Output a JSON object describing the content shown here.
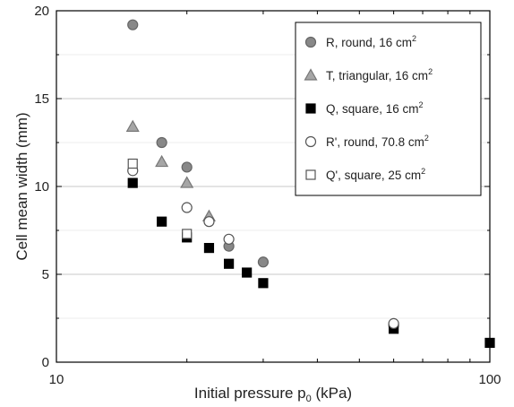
{
  "chart_data": {
    "type": "scatter",
    "title": "",
    "xlabel": "Initial pressure p",
    "xlabel_sub": "0",
    "xlabel_unit": " (kPa)",
    "ylabel": "Cell mean width (mm)",
    "x_scale": "log",
    "xlim": [
      10,
      100
    ],
    "ylim": [
      0,
      20
    ],
    "x_ticks": [
      10,
      100
    ],
    "x_tick_labels": [
      "10",
      "100"
    ],
    "y_ticks": [
      0,
      5,
      10,
      15,
      20
    ],
    "y_tick_labels": [
      "0",
      "5",
      "10",
      "15",
      "20"
    ],
    "grid": "horizontal",
    "legend_position": "top-right",
    "series": [
      {
        "key": "R",
        "name": "R, round, 16 cm",
        "name_sup": "2",
        "marker": "circle",
        "fill": "#888888",
        "stroke": "#666666",
        "points": [
          [
            15,
            19.2
          ],
          [
            17.5,
            12.5
          ],
          [
            20,
            11.1
          ],
          [
            25,
            6.6
          ],
          [
            30,
            5.7
          ],
          [
            60,
            2.1
          ]
        ]
      },
      {
        "key": "T",
        "name": "T, triangular, 16 cm",
        "name_sup": "2",
        "marker": "triangle",
        "fill": "#a6a6a6",
        "stroke": "#777777",
        "points": [
          [
            15,
            13.4
          ],
          [
            17.5,
            11.4
          ],
          [
            20,
            10.2
          ],
          [
            22.5,
            8.3
          ]
        ]
      },
      {
        "key": "Q",
        "name": "Q, square, 16 cm",
        "name_sup": "2",
        "marker": "square",
        "fill": "#000000",
        "stroke": "#000000",
        "points": [
          [
            15,
            10.2
          ],
          [
            17.5,
            8.0
          ],
          [
            20,
            7.1
          ],
          [
            22.5,
            6.5
          ],
          [
            25,
            5.6
          ],
          [
            27.5,
            5.1
          ],
          [
            30,
            4.5
          ],
          [
            60,
            1.9
          ],
          [
            100,
            1.1
          ]
        ]
      },
      {
        "key": "Rp",
        "name": "R', round, 70.8 cm",
        "name_sup": "2",
        "marker": "circle",
        "fill": "#ffffff",
        "stroke": "#555555",
        "points": [
          [
            15,
            10.9
          ],
          [
            20,
            8.8
          ],
          [
            22.5,
            8.0
          ],
          [
            25,
            7.0
          ],
          [
            60,
            2.2
          ]
        ]
      },
      {
        "key": "Qp",
        "name": "Q', square, 25 cm",
        "name_sup": "2",
        "marker": "square",
        "fill": "#ffffff",
        "stroke": "#555555",
        "points": [
          [
            15,
            11.3
          ],
          [
            20,
            7.3
          ]
        ]
      }
    ]
  }
}
